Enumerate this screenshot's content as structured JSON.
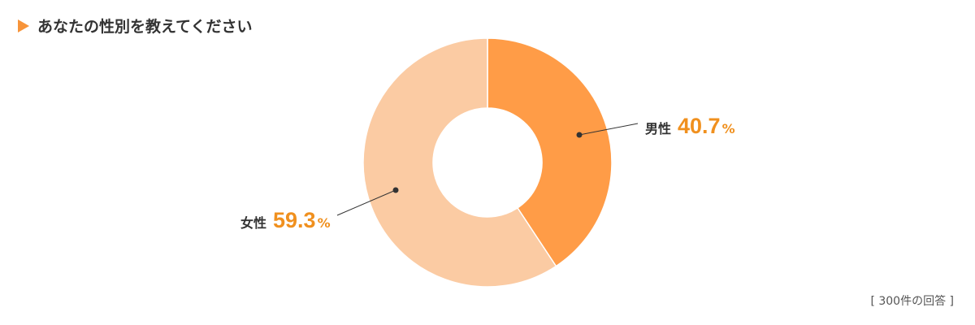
{
  "title": "あなたの性別を教えてください",
  "chart_data": {
    "type": "pie",
    "donut": true,
    "categories": [
      "男性",
      "女性"
    ],
    "values": [
      40.7,
      59.3
    ],
    "unit": "%",
    "colors": [
      "#FF9C47",
      "#FBCBA3"
    ],
    "label_color": "#F0901E"
  },
  "note": "[ 300件の回答 ]"
}
